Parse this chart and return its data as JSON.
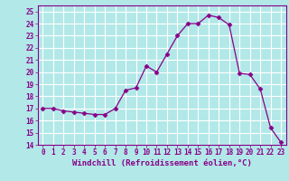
{
  "x": [
    0,
    1,
    2,
    3,
    4,
    5,
    6,
    7,
    8,
    9,
    10,
    11,
    12,
    13,
    14,
    15,
    16,
    17,
    18,
    19,
    20,
    21,
    22,
    23
  ],
  "y": [
    17.0,
    17.0,
    16.8,
    16.7,
    16.6,
    16.5,
    16.5,
    17.0,
    18.5,
    18.7,
    20.5,
    20.0,
    21.5,
    23.0,
    24.0,
    24.0,
    24.7,
    24.5,
    23.9,
    19.9,
    19.8,
    18.6,
    15.4,
    14.2
  ],
  "line_color": "#880088",
  "marker": "D",
  "marker_size": 2.5,
  "bg_color": "#b2e8e8",
  "grid_color": "#ffffff",
  "xlabel": "Windchill (Refroidissement éolien,°C)",
  "ylim": [
    14,
    25.5
  ],
  "xlim": [
    -0.5,
    23.5
  ],
  "yticks": [
    14,
    15,
    16,
    17,
    18,
    19,
    20,
    21,
    22,
    23,
    24,
    25
  ],
  "xticks": [
    0,
    1,
    2,
    3,
    4,
    5,
    6,
    7,
    8,
    9,
    10,
    11,
    12,
    13,
    14,
    15,
    16,
    17,
    18,
    19,
    20,
    21,
    22,
    23
  ],
  "tick_label_size": 5.5,
  "xlabel_size": 6.5
}
